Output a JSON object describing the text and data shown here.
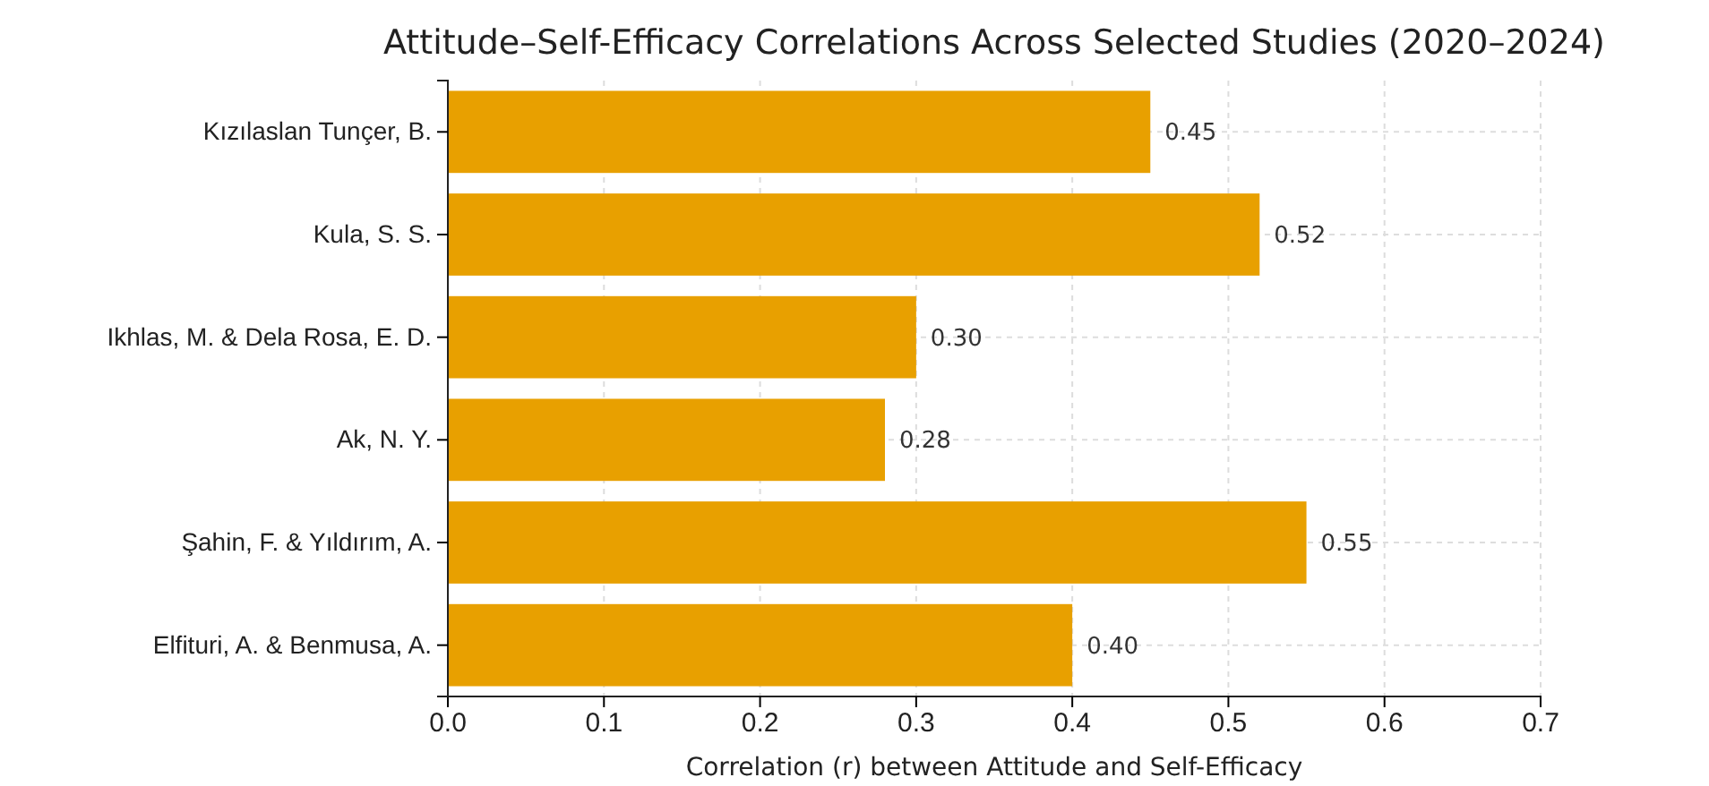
{
  "chart_data": {
    "type": "bar",
    "orientation": "horizontal",
    "title": "Attitude–Self-Efficacy Correlations Across Selected Studies (2020–2024)",
    "xlabel": "Correlation (r) between Attitude and Self-Efficacy",
    "categories": [
      "Kızılaslan Tunçer, B.",
      "Kula, S. S.",
      "Ikhlas, M. & Dela Rosa, E. D.",
      "Ak, N. Y.",
      "Şahin, F. & Yıldırım, A.",
      "Elfituri, A. & Benmusa, A."
    ],
    "values": [
      0.45,
      0.52,
      0.3,
      0.28,
      0.55,
      0.4
    ],
    "value_labels": [
      "0.45",
      "0.52",
      "0.30",
      "0.28",
      "0.55",
      "0.40"
    ],
    "color": "#e8a000",
    "xlim": [
      0,
      0.7
    ],
    "xticks": [
      {
        "value": 0,
        "label": "0.0"
      },
      0.1,
      0.2,
      0.3,
      0.4,
      0.5,
      0.6,
      0.7
    ],
    "grid": true
  }
}
